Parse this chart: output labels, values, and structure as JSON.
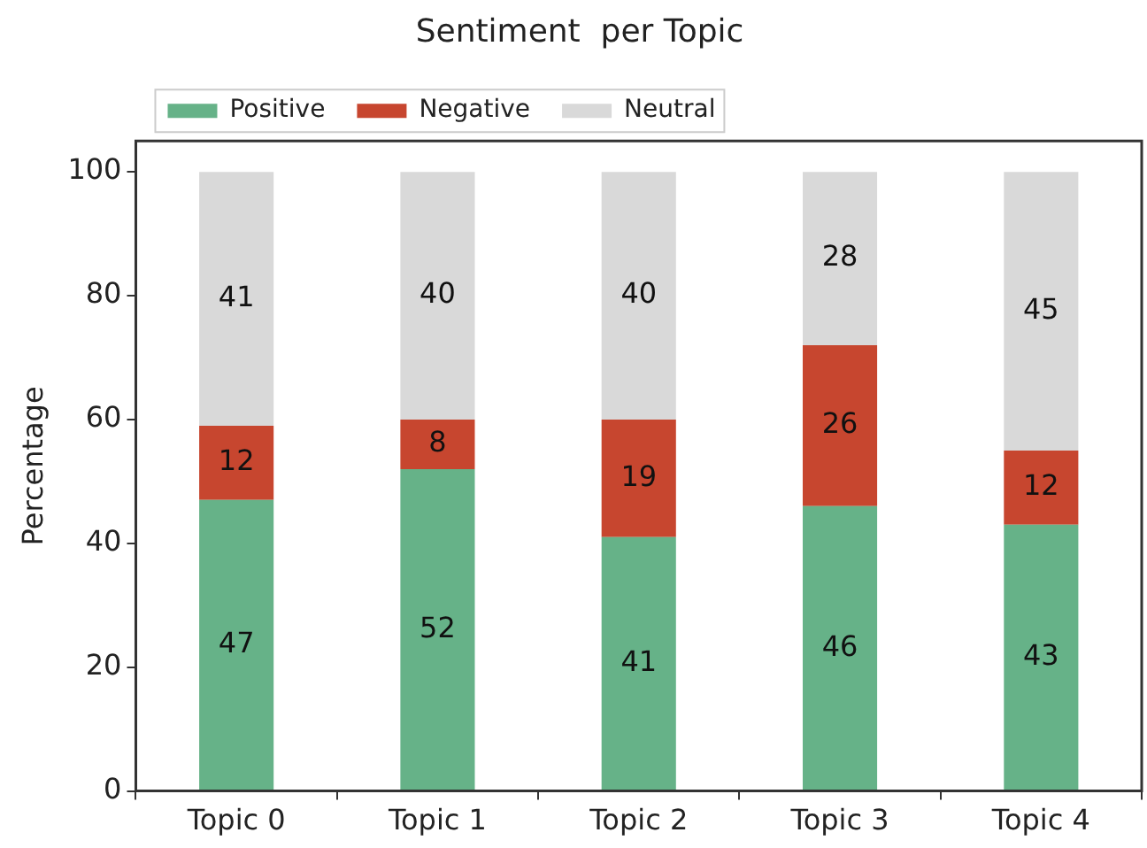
{
  "chart_data": {
    "type": "bar",
    "title": "Sentiment  per Topic",
    "ylabel": "Percentage",
    "categories": [
      "Topic 0",
      "Topic 1",
      "Topic 2",
      "Topic 3",
      "Topic 4"
    ],
    "series": [
      {
        "name": "Positive",
        "color": "#66b288",
        "values": [
          47,
          52,
          41,
          46,
          43
        ]
      },
      {
        "name": "Negative",
        "color": "#c7462f",
        "values": [
          12,
          8,
          19,
          26,
          12
        ]
      },
      {
        "name": "Neutral",
        "color": "#d9d9d9",
        "values": [
          41,
          40,
          40,
          28,
          45
        ]
      }
    ],
    "stacked": true,
    "ylim": [
      0,
      105
    ],
    "yticks": [
      0,
      20,
      40,
      60,
      80,
      100
    ],
    "data_labels": true,
    "legend": "top left"
  }
}
